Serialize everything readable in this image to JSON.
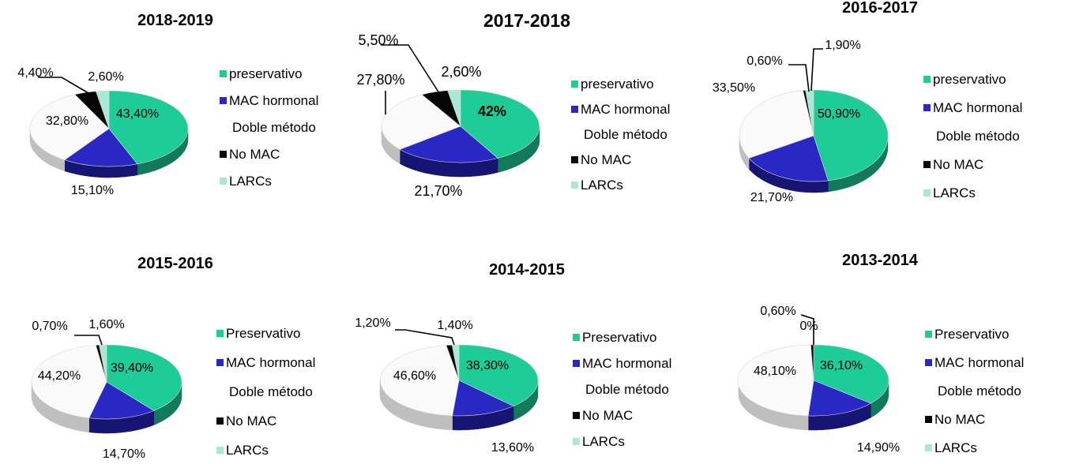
{
  "colors": {
    "preservativo": "#1ecc97",
    "mac_hormonal": "#2a28c4",
    "doble_metodo": "#fafafa",
    "no_mac": "#050505",
    "larcs": "#a9e8d4"
  },
  "chart_data": [
    {
      "type": "pie",
      "title": "2018-2019",
      "categories": [
        "preservativo",
        "MAC hormonal",
        "Doble método",
        "No MAC",
        "LARCs"
      ],
      "values": [
        43.4,
        15.1,
        32.8,
        4.4,
        2.6
      ],
      "value_labels": [
        "43,40%",
        "15,10%",
        "32,80%",
        "4,40%",
        "2,60%"
      ],
      "legend": [
        "preservativo",
        "MAC hormonal",
        "Doble método",
        "No MAC",
        "LARCs"
      ],
      "legend_placement": "right",
      "style": "3d"
    },
    {
      "type": "pie",
      "title": "2017-2018",
      "categories": [
        "preservativo",
        "MAC hormonal",
        "Doble método",
        "No MAC",
        "LARCs"
      ],
      "values": [
        42,
        21.7,
        27.8,
        5.5,
        2.6
      ],
      "value_labels": [
        "42%",
        "21,70%",
        "27,80%",
        "5,50%",
        "2,60%"
      ],
      "legend": [
        "preservativo",
        "MAC hormonal",
        "Doble método",
        "No MAC",
        "LARCs"
      ],
      "legend_placement": "right",
      "style": "3d"
    },
    {
      "type": "pie",
      "title": "2016-2017",
      "categories": [
        "preservativo",
        "MAC hormonal",
        "Doble método",
        "No MAC",
        "LARCs"
      ],
      "values": [
        50.9,
        21.7,
        33.5,
        0.6,
        1.9
      ],
      "value_labels": [
        "50,90%",
        "21,70%",
        "33,50%",
        "0,60%",
        "1,90%"
      ],
      "legend": [
        "preservativo",
        "MAC hormonal",
        "Doble método",
        "No MAC",
        "LARCs"
      ],
      "legend_placement": "right",
      "style": "3d"
    },
    {
      "type": "pie",
      "title": "2015-2016",
      "categories": [
        "Preservativo",
        "MAC hormonal",
        "Doble método",
        "No MAC",
        "LARCs"
      ],
      "values": [
        39.4,
        14.7,
        44.2,
        0.7,
        1.6
      ],
      "value_labels": [
        "39,40%",
        "14,70%",
        "44,20%",
        "0,70%",
        "1,60%"
      ],
      "legend": [
        "Preservativo",
        "MAC hormonal",
        "Doble método",
        "No MAC",
        "LARCs"
      ],
      "legend_placement": "right",
      "style": "3d"
    },
    {
      "type": "pie",
      "title": "2014-2015",
      "categories": [
        "Preservativo",
        "MAC hormonal",
        "Doble método",
        "No MAC",
        "LARCs"
      ],
      "values": [
        38.3,
        13.6,
        46.6,
        1.2,
        1.4
      ],
      "value_labels": [
        "38,30%",
        "13,60%",
        "46,60%",
        "1,20%",
        "1,40%"
      ],
      "legend": [
        "Preservativo",
        "MAC hormonal",
        "Doble método",
        "No MAC",
        "LARCs"
      ],
      "legend_placement": "right",
      "style": "3d"
    },
    {
      "type": "pie",
      "title": "2013-2014",
      "categories": [
        "Preservativo",
        "MAC hormonal",
        "Doble método",
        "No MAC",
        "LARCs"
      ],
      "values": [
        36.1,
        14.9,
        48.1,
        0.6,
        0
      ],
      "value_labels": [
        "36,10%",
        "14,90%",
        "48,10%",
        "0,60%",
        "0%"
      ],
      "legend": [
        "Preservativo",
        "MAC hormonal",
        "Doble método",
        "No MAC",
        "LARCs"
      ],
      "legend_placement": "right",
      "style": "3d"
    }
  ]
}
